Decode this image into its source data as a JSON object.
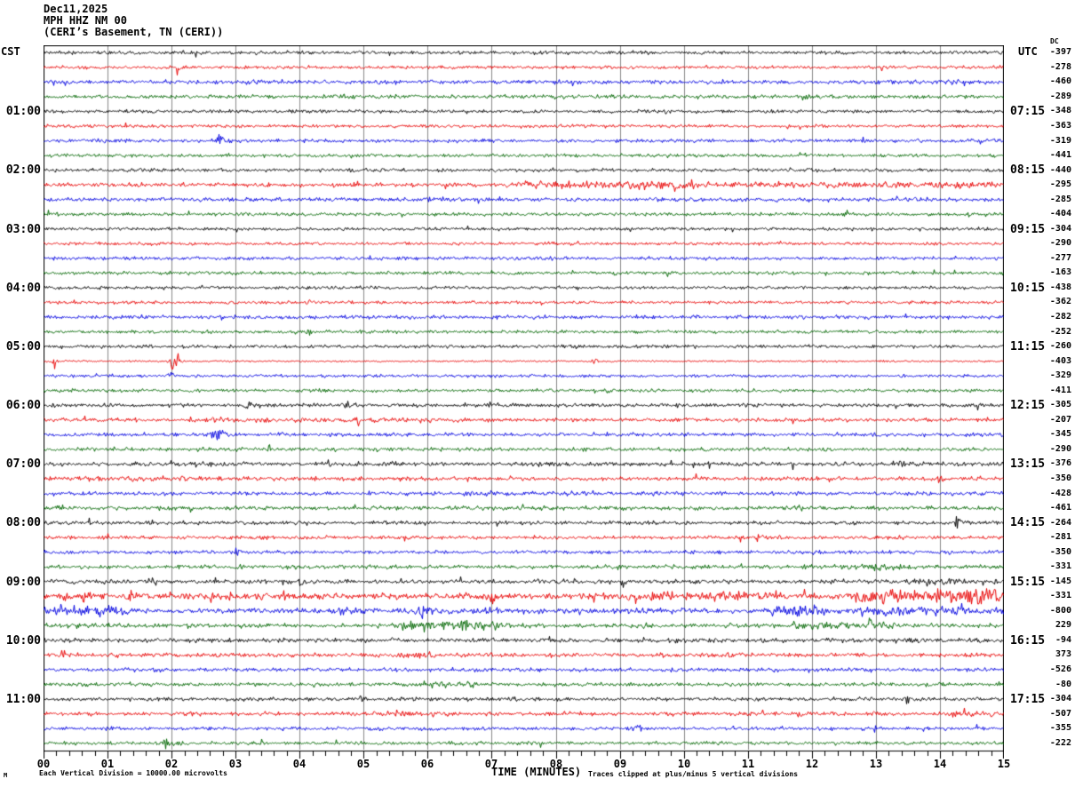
{
  "header": {
    "date_line": "Dec11,2025",
    "station_line": "MPH HHZ NM 00",
    "location_line": "(CERI’s Basement, TN (CERI))"
  },
  "axes": {
    "left_timezone": "CST",
    "right_timezone": "UTC",
    "dc_header": "DC",
    "hour_marks": [
      {
        "row": 4,
        "cst": "01:00",
        "utc": "07:15"
      },
      {
        "row": 8,
        "cst": "02:00",
        "utc": "08:15"
      },
      {
        "row": 12,
        "cst": "03:00",
        "utc": "09:15"
      },
      {
        "row": 16,
        "cst": "04:00",
        "utc": "10:15"
      },
      {
        "row": 20,
        "cst": "05:00",
        "utc": "11:15"
      },
      {
        "row": 24,
        "cst": "06:00",
        "utc": "12:15"
      },
      {
        "row": 28,
        "cst": "07:00",
        "utc": "13:15"
      },
      {
        "row": 32,
        "cst": "08:00",
        "utc": "14:15"
      },
      {
        "row": 36,
        "cst": "09:00",
        "utc": "15:15"
      },
      {
        "row": 40,
        "cst": "10:00",
        "utc": "16:15"
      },
      {
        "row": 44,
        "cst": "11:00",
        "utc": "17:15"
      }
    ],
    "minute_labels": [
      "00",
      "01",
      "02",
      "03",
      "04",
      "05",
      "06",
      "07",
      "08",
      "09",
      "10",
      "11",
      "12",
      "13",
      "14",
      "15"
    ],
    "xlabel": "TIME (MINUTES)"
  },
  "footer": {
    "left_note": "Each Vertical Division = 10000.00 microvolts",
    "right_note": "Traces clipped at plus/minus 5 vertical divisions",
    "corner_mark": "M"
  },
  "chart_data": {
    "type": "line",
    "title": "MPH HHZ NM 00 helicorder, Dec11,2025",
    "x_range_minutes": [
      0,
      15
    ],
    "minutes_per_line": 15,
    "rows": 48,
    "microvolts_per_division": 10000.0,
    "clip_divisions": 5,
    "grid_on": true,
    "grid_color": "#888888",
    "color_cycle": [
      "#000000",
      "#e80000",
      "#0000e0",
      "#006600"
    ],
    "dc_offsets": [
      -397,
      -278,
      -460,
      -289,
      -348,
      -363,
      -319,
      -441,
      -440,
      -295,
      -285,
      -404,
      -304,
      -290,
      -277,
      -163,
      -438,
      -362,
      -282,
      -252,
      -260,
      -403,
      -329,
      -411,
      -305,
      -207,
      -345,
      -290,
      -376,
      -350,
      -428,
      -461,
      -264,
      -281,
      -350,
      -331,
      -145,
      -331,
      -800,
      229,
      -94,
      373,
      -526,
      -80,
      -304,
      -507,
      -355,
      -222
    ],
    "traces": [
      {
        "row": 0,
        "cst_start": "00:00",
        "color": "black",
        "base_amp": 1.5,
        "bursts": [],
        "spikes": [
          [
            9.3,
            2.0
          ]
        ]
      },
      {
        "row": 1,
        "cst_start": "00:15",
        "color": "red",
        "base_amp": 1.4,
        "bursts": [],
        "spikes": [
          [
            2.1,
            5.5
          ]
        ]
      },
      {
        "row": 2,
        "cst_start": "00:30",
        "color": "blue",
        "base_amp": 1.8,
        "bursts": [],
        "spikes": []
      },
      {
        "row": 3,
        "cst_start": "00:45",
        "color": "green",
        "base_amp": 1.6,
        "bursts": [],
        "spikes": [
          [
            11.9,
            2.5
          ]
        ]
      },
      {
        "row": 4,
        "cst_start": "01:00",
        "color": "black",
        "base_amp": 1.5,
        "bursts": [],
        "spikes": []
      },
      {
        "row": 5,
        "cst_start": "01:15",
        "color": "red",
        "base_amp": 1.4,
        "bursts": [],
        "spikes": []
      },
      {
        "row": 6,
        "cst_start": "01:30",
        "color": "blue",
        "base_amp": 1.5,
        "bursts": [
          [
            2.5,
            3.05,
            2.6
          ]
        ],
        "spikes": [
          [
            2.75,
            3.5
          ]
        ]
      },
      {
        "row": 7,
        "cst_start": "01:45",
        "color": "green",
        "base_amp": 1.4,
        "bursts": [],
        "spikes": []
      },
      {
        "row": 8,
        "cst_start": "02:00",
        "color": "black",
        "base_amp": 1.5,
        "bursts": [],
        "spikes": []
      },
      {
        "row": 9,
        "cst_start": "02:15",
        "color": "red",
        "base_amp": 1.7,
        "bursts": [
          [
            7.2,
            15,
            3.0
          ],
          [
            8.9,
            10.3,
            4.2
          ]
        ],
        "spikes": []
      },
      {
        "row": 10,
        "cst_start": "02:30",
        "color": "blue",
        "base_amp": 1.7,
        "bursts": [
          [
            5.8,
            6.6,
            2.4
          ]
        ],
        "spikes": []
      },
      {
        "row": 11,
        "cst_start": "02:45",
        "color": "green",
        "base_amp": 1.5,
        "bursts": [],
        "spikes": []
      },
      {
        "row": 12,
        "cst_start": "03:00",
        "color": "black",
        "base_amp": 1.4,
        "bursts": [],
        "spikes": []
      },
      {
        "row": 13,
        "cst_start": "03:15",
        "color": "red",
        "base_amp": 1.4,
        "bursts": [],
        "spikes": []
      },
      {
        "row": 14,
        "cst_start": "03:30",
        "color": "blue",
        "base_amp": 1.5,
        "bursts": [],
        "spikes": []
      },
      {
        "row": 15,
        "cst_start": "03:45",
        "color": "green",
        "base_amp": 1.5,
        "bursts": [],
        "spikes": []
      },
      {
        "row": 16,
        "cst_start": "04:00",
        "color": "black",
        "base_amp": 1.3,
        "bursts": [],
        "spikes": []
      },
      {
        "row": 17,
        "cst_start": "04:15",
        "color": "red",
        "base_amp": 1.4,
        "bursts": [],
        "spikes": [
          [
            4.15,
            2.0
          ]
        ]
      },
      {
        "row": 18,
        "cst_start": "04:30",
        "color": "blue",
        "base_amp": 1.6,
        "bursts": [],
        "spikes": []
      },
      {
        "row": 19,
        "cst_start": "04:45",
        "color": "green",
        "base_amp": 1.4,
        "bursts": [],
        "spikes": [
          [
            4.15,
            2.8
          ]
        ]
      },
      {
        "row": 20,
        "cst_start": "05:00",
        "color": "black",
        "base_amp": 1.4,
        "bursts": [],
        "spikes": []
      },
      {
        "row": 21,
        "cst_start": "05:15",
        "color": "red",
        "base_amp": 0.8,
        "bursts": [],
        "spikes": [
          [
            0.15,
            2.2
          ],
          [
            2.0,
            6.5
          ],
          [
            2.1,
            4.5
          ],
          [
            8.6,
            2.4
          ]
        ]
      },
      {
        "row": 22,
        "cst_start": "05:30",
        "color": "blue",
        "base_amp": 1.3,
        "bursts": [],
        "spikes": [
          [
            2.0,
            4.2
          ]
        ]
      },
      {
        "row": 23,
        "cst_start": "05:45",
        "color": "green",
        "base_amp": 1.4,
        "bursts": [],
        "spikes": [
          [
            8.8,
            2.6
          ]
        ]
      },
      {
        "row": 24,
        "cst_start": "06:00",
        "color": "black",
        "base_amp": 1.6,
        "bursts": [],
        "spikes": [
          [
            3.2,
            3.2
          ],
          [
            4.7,
            3.8
          ]
        ]
      },
      {
        "row": 25,
        "cst_start": "06:15",
        "color": "red",
        "base_amp": 1.6,
        "bursts": [
          [
            2.5,
            6.2,
            2.2
          ]
        ],
        "spikes": [
          [
            4.9,
            2.8
          ]
        ]
      },
      {
        "row": 26,
        "cst_start": "06:30",
        "color": "blue",
        "base_amp": 1.6,
        "bursts": [
          [
            2.45,
            3.1,
            2.6
          ]
        ],
        "spikes": [
          [
            2.7,
            4.0
          ]
        ]
      },
      {
        "row": 27,
        "cst_start": "06:45",
        "color": "green",
        "base_amp": 1.6,
        "bursts": [],
        "spikes": [
          [
            3.5,
            2.8
          ]
        ]
      },
      {
        "row": 28,
        "cst_start": "07:00",
        "color": "black",
        "base_amp": 1.8,
        "bursts": [
          [
            13.1,
            13.9,
            2.6
          ]
        ],
        "spikes": []
      },
      {
        "row": 29,
        "cst_start": "07:15",
        "color": "red",
        "base_amp": 1.7,
        "bursts": [
          [
            0,
            2,
            2.2
          ]
        ],
        "spikes": [
          [
            2.15,
            4.2
          ],
          [
            14.0,
            5.5
          ]
        ]
      },
      {
        "row": 30,
        "cst_start": "07:30",
        "color": "blue",
        "base_amp": 1.7,
        "bursts": [
          [
            6.3,
            7.2,
            2.4
          ]
        ],
        "spikes": []
      },
      {
        "row": 31,
        "cst_start": "07:45",
        "color": "green",
        "base_amp": 1.8,
        "bursts": [
          [
            11.5,
            12.1,
            2.6
          ]
        ],
        "spikes": []
      },
      {
        "row": 32,
        "cst_start": "08:00",
        "color": "black",
        "base_amp": 1.6,
        "bursts": [],
        "spikes": [
          [
            14.25,
            6.5
          ],
          [
            14.35,
            4.5
          ]
        ]
      },
      {
        "row": 33,
        "cst_start": "08:15",
        "color": "red",
        "base_amp": 1.6,
        "bursts": [],
        "spikes": [
          [
            10.9,
            3.2
          ],
          [
            11.15,
            2.8
          ]
        ]
      },
      {
        "row": 34,
        "cst_start": "08:30",
        "color": "blue",
        "base_amp": 1.5,
        "bursts": [],
        "spikes": [
          [
            3.0,
            3.8
          ]
        ]
      },
      {
        "row": 35,
        "cst_start": "08:45",
        "color": "green",
        "base_amp": 1.7,
        "bursts": [
          [
            12.3,
            13.7,
            2.8
          ]
        ],
        "spikes": []
      },
      {
        "row": 36,
        "cst_start": "09:00",
        "color": "black",
        "base_amp": 1.8,
        "bursts": [
          [
            13.4,
            15,
            2.8
          ]
        ],
        "spikes": [
          [
            1.7,
            4.5
          ],
          [
            4.0,
            4.5
          ],
          [
            9.05,
            5.5
          ]
        ]
      },
      {
        "row": 37,
        "cst_start": "09:15",
        "color": "red",
        "base_amp": 2.8,
        "bursts": [
          [
            9.3,
            11.3,
            4.5
          ],
          [
            12.5,
            15,
            6.5
          ]
        ],
        "spikes": [
          [
            0.35,
            4.5
          ],
          [
            0.65,
            4.5
          ],
          [
            1.35,
            4.5
          ],
          [
            2.9,
            4.5
          ],
          [
            3.8,
            5.0
          ],
          [
            7.0,
            4.5
          ],
          [
            14.6,
            7.0
          ]
        ]
      },
      {
        "row": 38,
        "cst_start": "09:30",
        "color": "blue",
        "base_amp": 2.6,
        "bursts": [
          [
            0,
            1.6,
            4.5
          ],
          [
            4.4,
            5.2,
            3.5
          ],
          [
            11.2,
            12.3,
            5.5
          ],
          [
            12.6,
            15,
            3.8
          ]
        ],
        "spikes": [
          [
            5.9,
            4.0
          ]
        ]
      },
      {
        "row": 39,
        "cst_start": "09:45",
        "color": "green",
        "base_amp": 1.9,
        "bursts": [
          [
            2.2,
            2.6,
            3.8
          ],
          [
            5.4,
            7.3,
            4.2
          ],
          [
            11.5,
            13.4,
            3.2
          ]
        ],
        "spikes": [
          [
            12.9,
            4.5
          ]
        ]
      },
      {
        "row": 40,
        "cst_start": "10:00",
        "color": "black",
        "base_amp": 1.9,
        "bursts": [
          [
            2.0,
            2.5,
            2.8
          ]
        ],
        "spikes": [
          [
            13.6,
            3.5
          ]
        ]
      },
      {
        "row": 41,
        "cst_start": "10:15",
        "color": "red",
        "base_amp": 1.7,
        "bursts": [
          [
            5.3,
            6.5,
            2.4
          ],
          [
            10.3,
            11.0,
            2.4
          ]
        ],
        "spikes": [
          [
            0.3,
            2.8
          ]
        ]
      },
      {
        "row": 42,
        "cst_start": "10:30",
        "color": "blue",
        "base_amp": 1.6,
        "bursts": [],
        "spikes": []
      },
      {
        "row": 43,
        "cst_start": "10:45",
        "color": "green",
        "base_amp": 1.6,
        "bursts": [
          [
            5.8,
            6.8,
            3.0
          ]
        ],
        "spikes": []
      },
      {
        "row": 44,
        "cst_start": "11:00",
        "color": "black",
        "base_amp": 1.6,
        "bursts": [],
        "spikes": [
          [
            4.95,
            5.5
          ],
          [
            7.3,
            3.2
          ],
          [
            13.5,
            3.8
          ]
        ]
      },
      {
        "row": 45,
        "cst_start": "11:15",
        "color": "red",
        "base_amp": 1.7,
        "bursts": [
          [
            5.2,
            6.4,
            2.6
          ],
          [
            13.9,
            15,
            2.2
          ]
        ],
        "spikes": [
          [
            2.3,
            4.2
          ],
          [
            11.8,
            4.5
          ]
        ]
      },
      {
        "row": 46,
        "cst_start": "11:30",
        "color": "blue",
        "base_amp": 1.5,
        "bursts": [],
        "spikes": [
          [
            1.0,
            2.8
          ],
          [
            9.3,
            3.6
          ],
          [
            13.0,
            3.2
          ]
        ]
      },
      {
        "row": 47,
        "cst_start": "11:45",
        "color": "green",
        "base_amp": 1.5,
        "bursts": [
          [
            1.6,
            2.2,
            2.4
          ]
        ],
        "spikes": [
          [
            1.9,
            4.2
          ]
        ]
      }
    ]
  }
}
